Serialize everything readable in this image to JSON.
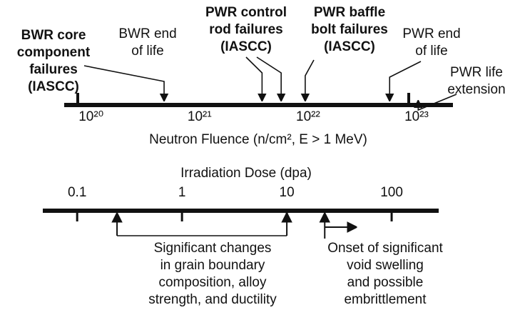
{
  "top_axis": {
    "label": "Neutron Fluence (n/cm², E > 1 MeV)",
    "log_scale": true,
    "xlim": [
      6e+19,
      2.3e+23
    ],
    "ticks": [
      {
        "value": 1e+20,
        "label": "10²⁰"
      },
      {
        "value": 1e+21,
        "label": "10²¹"
      },
      {
        "value": 1e+22,
        "label": "10²²"
      },
      {
        "value": 1e+23,
        "label": "10²³"
      }
    ],
    "annotations": [
      {
        "lines": [
          "BWR core",
          "component",
          "failures",
          "(IASCC)"
        ],
        "bold": true,
        "ticks": [
          8e+19
        ],
        "arrows": []
      },
      {
        "lines": [
          "BWR end",
          "of life"
        ],
        "bold": false,
        "ticks": [],
        "arrows": [
          5e+20
        ]
      },
      {
        "lines": [
          "PWR control",
          "rod failures",
          "(IASCC)"
        ],
        "bold": true,
        "ticks": [],
        "arrows": [
          4e+21,
          6e+21
        ]
      },
      {
        "lines": [
          "PWR baffle",
          "bolt failures",
          "(IASCC)"
        ],
        "bold": true,
        "ticks": [],
        "arrows": [
          1e+22
        ]
      },
      {
        "lines": [
          "PWR end",
          "of life"
        ],
        "bold": false,
        "ticks": [],
        "arrows": [
          6e+22
        ]
      },
      {
        "lines": [
          "PWR life",
          "extension"
        ],
        "bold": false,
        "ticks": [
          9e+22
        ],
        "arrows": [
          1.1e+23
        ]
      }
    ]
  },
  "bottom_axis": {
    "label": "Irradiation Dose (dpa)",
    "log_scale": true,
    "xlim": [
      0.047,
      281
    ],
    "ticks": [
      0.1,
      1,
      10,
      100
    ],
    "annotations": [
      {
        "lines": [
          "Significant changes",
          "in grain boundary",
          "composition, alloy",
          "strength, and ductility"
        ],
        "range": [
          0.24,
          10
        ]
      },
      {
        "lines": [
          "Onset of significant",
          "void swelling",
          "and possible",
          "embrittlement"
        ],
        "onset": 23
      }
    ]
  }
}
